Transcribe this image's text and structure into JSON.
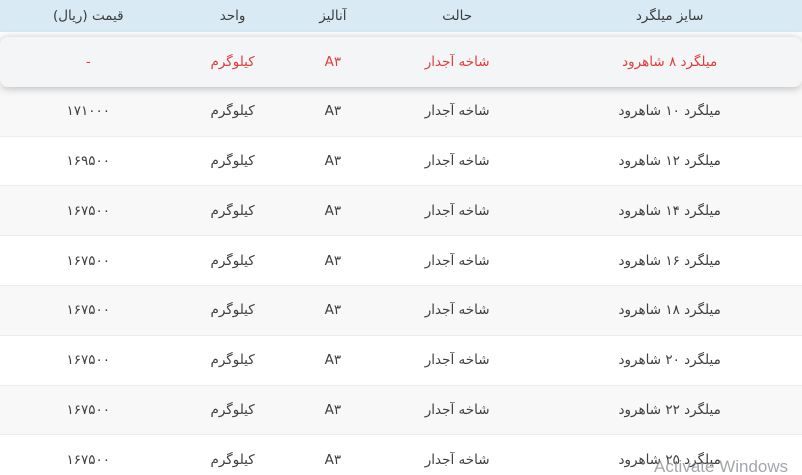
{
  "colors": {
    "header_bg": "#d9eaf4",
    "highlight_text": "#e03e3e",
    "body_text": "#3f3f3f",
    "shaded_row_bg": "#f8f8f8"
  },
  "table": {
    "columns": [
      {
        "key": "size",
        "label": "سایز میلگرد"
      },
      {
        "key": "state",
        "label": "حالت"
      },
      {
        "key": "analysis",
        "label": "آنالیز"
      },
      {
        "key": "unit",
        "label": "واحد"
      },
      {
        "key": "price",
        "label": "قیمت (ریال)"
      }
    ],
    "rows": [
      {
        "size": "میلگرد ۸ شاهرود",
        "state": "شاخه آجدار",
        "analysis": "A۳",
        "unit": "کیلوگرم",
        "price": "-",
        "highlighted": true
      },
      {
        "size": "میلگرد ۱۰ شاهرود",
        "state": "شاخه آجدار",
        "analysis": "A۳",
        "unit": "کیلوگرم",
        "price": "۱۷۱۰۰۰",
        "highlighted": false
      },
      {
        "size": "میلگرد ۱۲ شاهرود",
        "state": "شاخه آجدار",
        "analysis": "A۳",
        "unit": "کیلوگرم",
        "price": "۱۶۹۵۰۰",
        "highlighted": false
      },
      {
        "size": "میلگرد ۱۴ شاهرود",
        "state": "شاخه آجدار",
        "analysis": "A۳",
        "unit": "کیلوگرم",
        "price": "۱۶۷۵۰۰",
        "highlighted": false
      },
      {
        "size": "میلگرد ۱۶ شاهرود",
        "state": "شاخه آجدار",
        "analysis": "A۳",
        "unit": "کیلوگرم",
        "price": "۱۶۷۵۰۰",
        "highlighted": false
      },
      {
        "size": "میلگرد ۱۸ شاهرود",
        "state": "شاخه آجدار",
        "analysis": "A۳",
        "unit": "کیلوگرم",
        "price": "۱۶۷۵۰۰",
        "highlighted": false
      },
      {
        "size": "میلگرد ۲۰ شاهرود",
        "state": "شاخه آجدار",
        "analysis": "A۳",
        "unit": "کیلوگرم",
        "price": "۱۶۷۵۰۰",
        "highlighted": false
      },
      {
        "size": "میلگرد ۲۲ شاهرود",
        "state": "شاخه آجدار",
        "analysis": "A۳",
        "unit": "کیلوگرم",
        "price": "۱۶۷۵۰۰",
        "highlighted": false
      },
      {
        "size": "میلگرد ۲۵ شاهرود",
        "state": "شاخه آجدار",
        "analysis": "A۳",
        "unit": "کیلوگرم",
        "price": "۱۶۷۵۰۰",
        "highlighted": false
      }
    ]
  },
  "watermark": {
    "line1": "Activate Windows"
  }
}
